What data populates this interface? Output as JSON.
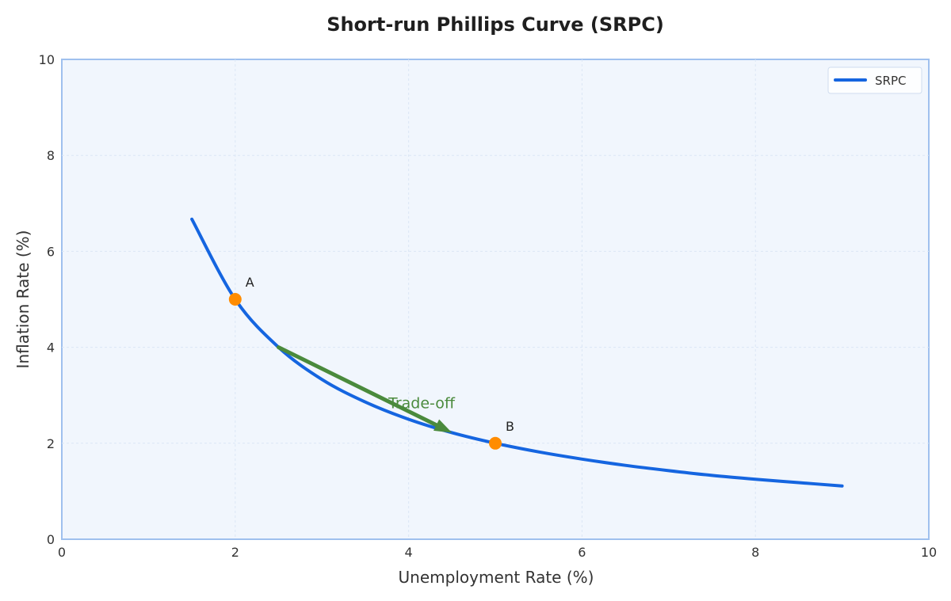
{
  "chart_data": {
    "type": "line",
    "title": "Short-run Phillips Curve (SRPC)",
    "xlabel": "Unemployment Rate (%)",
    "ylabel": "Inflation Rate (%)",
    "xlim": [
      0,
      10
    ],
    "ylim": [
      0,
      10
    ],
    "x_ticks": [
      "0",
      "2",
      "4",
      "6",
      "8",
      "10"
    ],
    "y_ticks": [
      "0",
      "2",
      "4",
      "6",
      "8",
      "10"
    ],
    "grid": true,
    "legend_position": "top-right",
    "series": [
      {
        "name": "SRPC",
        "color": "#1565e0",
        "x": [
          1.5,
          2,
          2.5,
          3,
          3.5,
          4,
          4.5,
          5,
          5.5,
          6,
          6.5,
          7,
          7.5,
          8,
          8.5,
          9
        ],
        "y": [
          6.67,
          5.0,
          4.0,
          3.33,
          2.86,
          2.5,
          2.22,
          2.0,
          1.82,
          1.67,
          1.54,
          1.43,
          1.33,
          1.25,
          1.18,
          1.11
        ]
      }
    ],
    "points": [
      {
        "label": "A",
        "x": 2,
        "y": 5,
        "color": "#ff8c00"
      },
      {
        "label": "B",
        "x": 5,
        "y": 2,
        "color": "#ff8c00"
      }
    ],
    "annotation": {
      "text": "Trade-off",
      "color": "#4a8a3c",
      "arrow_from": [
        2.5,
        4.0
      ],
      "arrow_to": [
        4.5,
        2.22
      ],
      "text_at": [
        4.15,
        2.85
      ]
    },
    "colors": {
      "plot_background": "#f1f6fd",
      "plot_border": "#9fc0ee",
      "grid": "#dbe6f5"
    }
  }
}
